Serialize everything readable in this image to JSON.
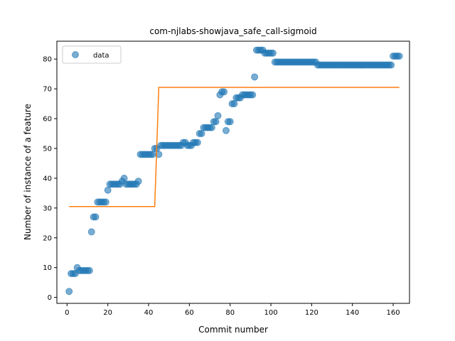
{
  "chart_data": {
    "type": "scatter",
    "title": "com-njlabs-showjava_safe_call-sigmoid",
    "xlabel": "Commit number",
    "ylabel": "Number of instance of a feature",
    "xlim": [
      -5,
      168
    ],
    "ylim": [
      -2,
      86
    ],
    "xticks": [
      0,
      20,
      40,
      60,
      80,
      100,
      120,
      140,
      160
    ],
    "yticks": [
      0,
      10,
      20,
      30,
      40,
      50,
      60,
      70,
      80
    ],
    "legend": {
      "placement": "top-left",
      "entries": [
        "data"
      ]
    },
    "grid": false,
    "series": [
      {
        "name": "data",
        "kind": "scatter",
        "color": "#1f77b4",
        "x": [
          1,
          2,
          3,
          4,
          5,
          6,
          7,
          8,
          9,
          10,
          11,
          12,
          13,
          14,
          15,
          16,
          17,
          18,
          19,
          20,
          21,
          22,
          23,
          24,
          25,
          26,
          27,
          28,
          29,
          30,
          31,
          32,
          33,
          34,
          35,
          36,
          37,
          38,
          39,
          40,
          41,
          42,
          43,
          44,
          45,
          46,
          47,
          48,
          49,
          50,
          51,
          52,
          53,
          54,
          55,
          56,
          57,
          58,
          59,
          60,
          61,
          62,
          63,
          64,
          65,
          66,
          67,
          68,
          69,
          70,
          71,
          72,
          73,
          74,
          75,
          76,
          77,
          78,
          79,
          80,
          81,
          82,
          83,
          84,
          85,
          86,
          87,
          88,
          89,
          90,
          91,
          92,
          93,
          94,
          95,
          96,
          97,
          98,
          99,
          100,
          101,
          102,
          103,
          104,
          105,
          106,
          107,
          108,
          109,
          110,
          111,
          112,
          113,
          114,
          115,
          116,
          117,
          118,
          119,
          120,
          121,
          122,
          123,
          124,
          125,
          126,
          127,
          128,
          129,
          130,
          131,
          132,
          133,
          134,
          135,
          136,
          137,
          138,
          139,
          140,
          141,
          142,
          143,
          144,
          145,
          146,
          147,
          148,
          149,
          150,
          151,
          152,
          153,
          154,
          155,
          156,
          157,
          158,
          159,
          160,
          161,
          162,
          163
        ],
        "y": [
          2,
          8,
          8,
          8,
          10,
          9,
          9,
          9,
          9,
          9,
          9,
          22,
          27,
          27,
          32,
          32,
          32,
          32,
          32,
          36,
          38,
          38,
          38,
          38,
          38,
          38,
          39,
          40,
          38,
          38,
          38,
          38,
          38,
          38,
          39,
          48,
          48,
          48,
          48,
          48,
          48,
          48,
          50,
          50,
          48,
          51,
          51,
          51,
          51,
          51,
          51,
          51,
          51,
          51,
          51,
          51,
          52,
          52,
          51,
          51,
          51,
          52,
          52,
          52,
          55,
          55,
          57,
          57,
          57,
          57,
          57,
          59,
          59,
          61,
          68,
          69,
          69,
          56,
          59,
          59,
          65,
          65,
          67,
          67,
          67,
          68,
          68,
          68,
          68,
          68,
          68,
          74,
          83,
          83,
          83,
          83,
          82,
          82,
          82,
          82,
          82,
          79,
          79,
          79,
          79,
          79,
          79,
          79,
          79,
          79,
          79,
          79,
          79,
          79,
          79,
          79,
          79,
          79,
          79,
          79,
          79,
          79,
          78,
          78,
          78,
          78,
          78,
          78,
          78,
          78,
          78,
          78,
          78,
          78,
          78,
          78,
          78,
          78,
          78,
          78,
          78,
          78,
          78,
          78,
          78,
          78,
          78,
          78,
          78,
          78,
          78,
          78,
          78,
          78,
          78,
          78,
          78,
          78,
          78,
          81,
          81,
          81,
          81
        ]
      },
      {
        "name": "",
        "kind": "line",
        "color": "#ff7f0e",
        "x": [
          1,
          43,
          45,
          163
        ],
        "y": [
          30.5,
          30.5,
          70.5,
          70.5
        ]
      }
    ]
  }
}
